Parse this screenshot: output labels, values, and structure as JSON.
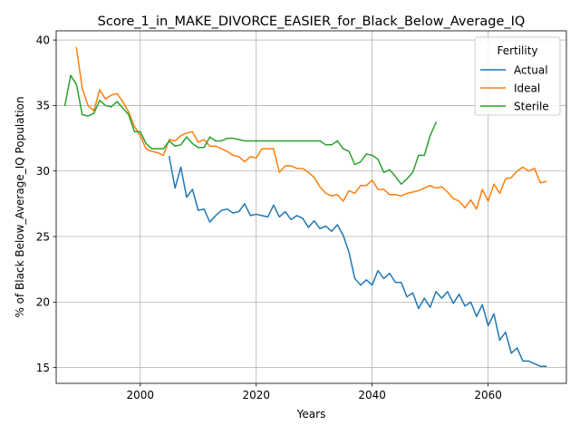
{
  "chart_data": {
    "type": "line",
    "title": "Score_1_in_MAKE_DIVORCE_EASIER_for_Black_Below_Average_IQ",
    "xlabel": "Years",
    "ylabel": "% of Black Below_Average_IQ Population",
    "xlim": [
      1985.5,
      2073.5
    ],
    "ylim": [
      13.8,
      40.7
    ],
    "x_ticks": [
      2000,
      2020,
      2040,
      2060
    ],
    "y_ticks": [
      15,
      20,
      25,
      30,
      35,
      40
    ],
    "grid": true,
    "legend": {
      "title": "Fertility",
      "position": "top-right"
    },
    "colors": {
      "Actual": "#1f77b4",
      "Ideal": "#ff7f0e",
      "Sterile": "#2ca02c"
    },
    "series": [
      {
        "name": "Actual",
        "x": [
          2005,
          2006,
          2007,
          2008,
          2009,
          2010,
          2011,
          2012,
          2013,
          2014,
          2015,
          2016,
          2017,
          2018,
          2019,
          2020,
          2021,
          2022,
          2023,
          2024,
          2025,
          2026,
          2027,
          2028,
          2029,
          2030,
          2031,
          2032,
          2033,
          2034,
          2035,
          2036,
          2037,
          2038,
          2039,
          2040,
          2041,
          2042,
          2043,
          2044,
          2045,
          2046,
          2047,
          2048,
          2049,
          2050,
          2051,
          2052,
          2053,
          2054,
          2055,
          2056,
          2057,
          2058,
          2059,
          2060,
          2061,
          2062,
          2063,
          2064,
          2065,
          2066,
          2067,
          2068,
          2069,
          2070
        ],
        "y": [
          31.1,
          28.7,
          30.3,
          28.0,
          28.6,
          27.0,
          27.1,
          26.1,
          26.6,
          27.0,
          27.1,
          26.8,
          26.9,
          27.5,
          26.6,
          26.7,
          26.6,
          26.5,
          27.4,
          26.5,
          26.9,
          26.3,
          26.6,
          26.4,
          25.7,
          26.2,
          25.6,
          25.8,
          25.4,
          25.9,
          25.1,
          23.8,
          21.8,
          21.3,
          21.7,
          21.3,
          22.4,
          21.8,
          22.2,
          21.5,
          21.5,
          20.4,
          20.7,
          19.5,
          20.3,
          19.6,
          20.8,
          20.3,
          20.8,
          19.9,
          20.6,
          19.7,
          20.0,
          18.9,
          19.8,
          18.2,
          19.1,
          17.1,
          17.7,
          16.1,
          16.5,
          15.5,
          15.5,
          15.3,
          15.1,
          15.1
        ]
      },
      {
        "name": "Ideal",
        "x": [
          1989,
          1990,
          1991,
          1992,
          1993,
          1994,
          1995,
          1996,
          1997,
          1998,
          1999,
          2000,
          2001,
          2002,
          2003,
          2004,
          2005,
          2006,
          2007,
          2008,
          2009,
          2010,
          2011,
          2012,
          2013,
          2014,
          2015,
          2016,
          2017,
          2018,
          2019,
          2020,
          2021,
          2022,
          2023,
          2024,
          2025,
          2026,
          2027,
          2028,
          2029,
          2030,
          2031,
          2032,
          2033,
          2034,
          2035,
          2036,
          2037,
          2038,
          2039,
          2040,
          2041,
          2042,
          2043,
          2044,
          2045,
          2046,
          2047,
          2048,
          2049,
          2050,
          2051,
          2052,
          2053,
          2054,
          2055,
          2056,
          2057,
          2058,
          2059,
          2060,
          2061,
          2062,
          2063,
          2064,
          2065,
          2066,
          2067,
          2068,
          2069,
          2070
        ],
        "y": [
          39.4,
          36.3,
          35.0,
          34.6,
          36.2,
          35.5,
          35.8,
          35.9,
          35.3,
          34.5,
          33.4,
          32.7,
          31.7,
          31.5,
          31.4,
          31.2,
          32.4,
          32.3,
          32.7,
          32.9,
          33.0,
          32.2,
          32.4,
          31.9,
          31.9,
          31.7,
          31.5,
          31.2,
          31.1,
          30.7,
          31.1,
          31.0,
          31.7,
          31.7,
          31.7,
          29.9,
          30.4,
          30.4,
          30.2,
          30.2,
          29.9,
          29.5,
          28.8,
          28.3,
          28.1,
          28.2,
          27.7,
          28.5,
          28.3,
          28.9,
          28.9,
          29.3,
          28.6,
          28.6,
          28.2,
          28.2,
          28.1,
          28.3,
          28.4,
          28.5,
          28.7,
          28.9,
          28.7,
          28.8,
          28.4,
          27.9,
          27.7,
          27.2,
          27.8,
          27.1,
          28.6,
          27.7,
          29.0,
          28.3,
          29.4,
          29.5,
          30.0,
          30.3,
          30.0,
          30.2,
          29.1,
          29.2
        ]
      },
      {
        "name": "Sterile",
        "x": [
          1987,
          1988,
          1989,
          1990,
          1991,
          1992,
          1993,
          1994,
          1995,
          1996,
          1997,
          1998,
          1999,
          2000,
          2001,
          2002,
          2003,
          2004,
          2005,
          2006,
          2007,
          2008,
          2009,
          2010,
          2011,
          2012,
          2013,
          2014,
          2015,
          2016,
          2017,
          2018,
          2019,
          2020,
          2021,
          2022,
          2023,
          2024,
          2025,
          2026,
          2027,
          2028,
          2029,
          2030,
          2031,
          2032,
          2033,
          2034,
          2035,
          2036,
          2037,
          2038,
          2039,
          2040,
          2041,
          2042,
          2043,
          2044,
          2045,
          2046,
          2047,
          2048,
          2049,
          2050,
          2051
        ],
        "y": [
          35.0,
          37.3,
          36.6,
          34.3,
          34.2,
          34.4,
          35.4,
          35.0,
          34.9,
          35.3,
          34.8,
          34.3,
          33.0,
          33.0,
          32.1,
          31.7,
          31.7,
          31.7,
          32.3,
          31.9,
          32.0,
          32.6,
          32.1,
          31.8,
          31.8,
          32.6,
          32.3,
          32.3,
          32.5,
          32.5,
          32.4,
          32.3,
          32.3,
          32.3,
          32.3,
          32.3,
          32.3,
          32.3,
          32.3,
          32.3,
          32.3,
          32.3,
          32.3,
          32.3,
          32.3,
          32.0,
          32.0,
          32.3,
          31.7,
          31.5,
          30.5,
          30.7,
          31.3,
          31.2,
          30.9,
          29.9,
          30.1,
          29.6,
          29.0,
          29.4,
          29.9,
          31.2,
          31.2,
          32.7,
          33.7
        ]
      }
    ]
  }
}
